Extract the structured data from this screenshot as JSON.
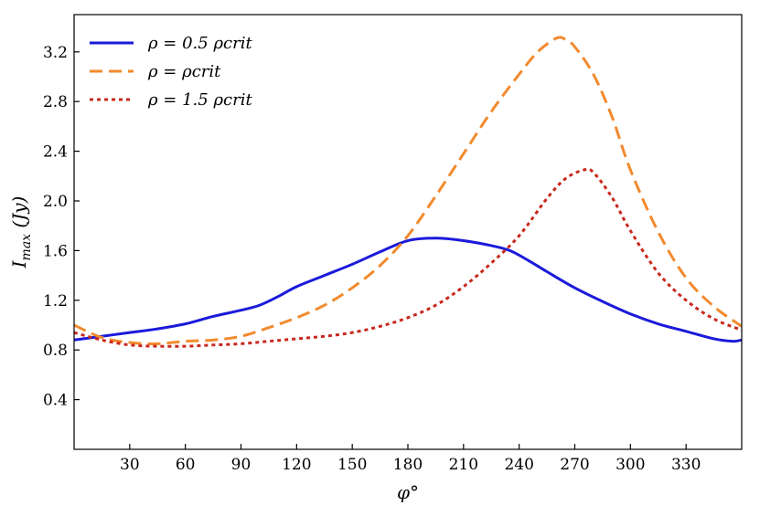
{
  "chart_data": {
    "type": "line",
    "title": "",
    "xlabel": "φ°",
    "ylabel": "I_max (Jy)",
    "ylabel_main": "I",
    "ylabel_sub": "max",
    "ylabel_rest": " (Jy)",
    "xlim": [
      0,
      360
    ],
    "ylim": [
      0,
      3.5
    ],
    "grid": false,
    "legend_position": "top-left",
    "xticks": [
      30,
      60,
      90,
      120,
      150,
      180,
      210,
      240,
      270,
      300,
      330
    ],
    "xtick_labels": [
      "30",
      "60",
      "90",
      "120",
      "150",
      "180",
      "210",
      "240",
      "270",
      "300",
      "330"
    ],
    "yticks": [
      0.4,
      0.8,
      1.2,
      1.6,
      2.0,
      2.4,
      2.8,
      3.2
    ],
    "ytick_labels": [
      "0.4",
      "0.8",
      "1.2",
      "1.6",
      "2.0",
      "2.4",
      "2.8",
      "3.2"
    ],
    "series": [
      {
        "name": "ρ = 0.5 ρ_crit",
        "legend_label": "ρ = 0.5 ρcrit",
        "color": "#1a1adb",
        "style": "solid",
        "x": [
          0,
          15,
          30,
          45,
          60,
          75,
          90,
          100,
          110,
          120,
          135,
          150,
          165,
          180,
          195,
          210,
          225,
          235,
          245,
          255,
          270,
          285,
          300,
          315,
          330,
          345,
          355,
          360
        ],
        "y": [
          0.88,
          0.91,
          0.94,
          0.97,
          1.01,
          1.07,
          1.12,
          1.16,
          1.23,
          1.31,
          1.4,
          1.49,
          1.59,
          1.68,
          1.7,
          1.68,
          1.64,
          1.6,
          1.52,
          1.43,
          1.3,
          1.19,
          1.09,
          1.01,
          0.95,
          0.89,
          0.87,
          0.88
        ]
      },
      {
        "name": "ρ = ρ_crit",
        "legend_label": "ρ = ρcrit",
        "color": "#f28a2e",
        "style": "dashed",
        "x": [
          0,
          15,
          30,
          45,
          60,
          75,
          90,
          105,
          120,
          135,
          150,
          165,
          180,
          195,
          210,
          225,
          240,
          250,
          260,
          265,
          270,
          280,
          290,
          300,
          315,
          330,
          345,
          360
        ],
        "y": [
          1.0,
          0.9,
          0.86,
          0.85,
          0.87,
          0.88,
          0.91,
          0.98,
          1.06,
          1.16,
          1.3,
          1.48,
          1.72,
          2.04,
          2.38,
          2.72,
          3.02,
          3.2,
          3.31,
          3.3,
          3.24,
          3.02,
          2.68,
          2.25,
          1.75,
          1.38,
          1.15,
          0.99
        ]
      },
      {
        "name": "ρ = 1.5 ρ_crit",
        "legend_label": "ρ = 1.5 ρcrit",
        "color": "#c8281e",
        "style": "dotted",
        "x": [
          0,
          15,
          30,
          45,
          60,
          75,
          90,
          105,
          120,
          135,
          150,
          165,
          180,
          195,
          210,
          225,
          240,
          255,
          265,
          275,
          280,
          290,
          300,
          315,
          330,
          345,
          360
        ],
        "y": [
          0.94,
          0.88,
          0.84,
          0.83,
          0.83,
          0.84,
          0.85,
          0.87,
          0.89,
          0.91,
          0.94,
          0.99,
          1.06,
          1.16,
          1.31,
          1.5,
          1.72,
          2.02,
          2.18,
          2.25,
          2.23,
          2.03,
          1.76,
          1.42,
          1.2,
          1.05,
          0.96
        ]
      }
    ]
  }
}
